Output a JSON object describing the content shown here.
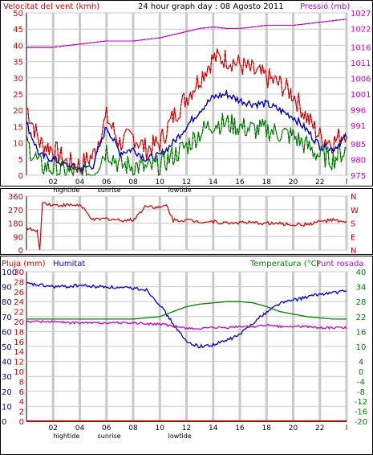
{
  "colors": {
    "frame": "#000000",
    "panel": "#ffffff",
    "grid": "#c9c9c9",
    "wind_speed": "#e00000",
    "wind_avg": "#0000cc",
    "wind_gust": "#008000",
    "pressure": "#cc00cc",
    "direction": "#d00000",
    "humidity": "#0000cc",
    "temperature": "#008000",
    "dewpoint": "#cc00cc",
    "rain": "#cc0000"
  },
  "header": {
    "left_label": "Velocitat del vent (kmh)",
    "center_label": "24 hour graph day : 08 Agosto 2011",
    "right_label": "Pressió (mb)"
  },
  "markers": {
    "hightide": "hightide",
    "sunrise": "sunrise",
    "lowtide": "lowtide"
  },
  "bottom_header": {
    "rain": "Pluja (mm)",
    "humidity": "Humitat",
    "temp": "Temperatura (°C)",
    "dew": "Punt rosada"
  },
  "chart_data": [
    {
      "type": "line",
      "panel": "wind",
      "x_ticks": [
        "02",
        "04",
        "06",
        "08",
        "10",
        "12",
        "14",
        "16",
        "18",
        "20",
        "22",
        "l"
      ],
      "y_left_ticks": [
        0,
        5,
        10,
        15,
        20,
        25,
        30,
        35,
        40,
        45,
        50
      ],
      "ylim_left": [
        0,
        50
      ],
      "y_right_ticks": [
        975,
        980,
        985,
        991,
        996,
        1001,
        1006,
        1011,
        1016,
        1022,
        1027
      ],
      "ylim_right": [
        975,
        1027
      ],
      "x": [
        0,
        1,
        2,
        3,
        4,
        5,
        6,
        7,
        8,
        9,
        10,
        11,
        12,
        13,
        14,
        15,
        16,
        17,
        18,
        19,
        20,
        21,
        22,
        23,
        24
      ],
      "series": [
        {
          "key": "max",
          "color": "wind_speed",
          "axis": "left",
          "values": [
            21,
            10,
            8,
            4,
            3,
            6,
            18,
            10,
            12,
            8,
            10,
            18,
            24,
            30,
            36,
            36,
            34,
            32,
            30,
            28,
            25,
            18,
            12,
            10,
            14
          ]
        },
        {
          "key": "avg",
          "color": "wind_avg",
          "axis": "left",
          "values": [
            16,
            6,
            5,
            3,
            2,
            3,
            15,
            7,
            8,
            5,
            6,
            10,
            15,
            20,
            24,
            25,
            23,
            22,
            22,
            20,
            18,
            14,
            9,
            8,
            12
          ]
        },
        {
          "key": "min",
          "color": "wind_gust",
          "axis": "left",
          "values": [
            10,
            3,
            2,
            1,
            0,
            1,
            8,
            3,
            3,
            2,
            3,
            6,
            9,
            13,
            16,
            16,
            15,
            14,
            14,
            13,
            12,
            9,
            6,
            5,
            8
          ]
        },
        {
          "key": "pressure",
          "color": "pressure",
          "axis": "right",
          "values": [
            1016,
            1016,
            1016,
            1016.5,
            1017,
            1017.5,
            1018,
            1018,
            1018,
            1018.5,
            1019,
            1020,
            1021,
            1022,
            1022.5,
            1022,
            1022,
            1022.5,
            1023,
            1023,
            1023,
            1023.5,
            1024,
            1024.5,
            1025
          ]
        }
      ],
      "ylabel_left": "Velocitat del vent (kmh)",
      "ylabel_right": "Pressió (mb)"
    },
    {
      "type": "line",
      "panel": "direction",
      "x_ticks": [],
      "y_left_ticks": [
        0,
        90,
        180,
        270,
        360
      ],
      "ylim": [
        0,
        360
      ],
      "compass": [
        "N",
        "W",
        "S",
        "E",
        "N"
      ],
      "x": [
        0,
        0.8,
        1,
        1.2,
        2,
        3,
        4,
        5,
        6,
        7,
        8,
        9,
        10,
        10.5,
        11,
        12,
        13,
        14,
        15,
        16,
        17,
        18,
        19,
        20,
        21,
        22,
        23,
        24
      ],
      "series": [
        {
          "key": "direction",
          "color": "direction",
          "values": [
            150,
            120,
            0,
            320,
            300,
            300,
            300,
            200,
            210,
            200,
            200,
            300,
            280,
            300,
            200,
            200,
            190,
            190,
            180,
            185,
            180,
            180,
            175,
            170,
            170,
            190,
            200,
            180
          ]
        }
      ]
    },
    {
      "type": "line",
      "panel": "temp-humidity",
      "x_ticks": [
        "02",
        "04",
        "06",
        "08",
        "10",
        "12",
        "14",
        "16",
        "18",
        "20",
        "22",
        "l"
      ],
      "y_rain_ticks": [
        0,
        2,
        4,
        6,
        8,
        10,
        12,
        14,
        16,
        18,
        20,
        22,
        24,
        26,
        28,
        30
      ],
      "y_humidity_ticks": [
        0,
        10,
        20,
        30,
        40,
        50,
        60,
        70,
        80,
        90,
        100
      ],
      "y_temp_ticks": [
        -20,
        -16,
        -12,
        -8,
        -4,
        0,
        4,
        10,
        16,
        22,
        28,
        34,
        40
      ],
      "ylim_humidity": [
        0,
        100
      ],
      "ylim_temp": [
        -20,
        40
      ],
      "ylim_rain": [
        0,
        30
      ],
      "x": [
        0,
        1,
        2,
        3,
        4,
        5,
        6,
        7,
        8,
        9,
        10,
        11,
        12,
        13,
        14,
        15,
        16,
        17,
        18,
        19,
        20,
        21,
        22,
        23,
        24
      ],
      "series": [
        {
          "key": "humidity",
          "color": "humidity",
          "axis": "humidity",
          "values": [
            92,
            91,
            90,
            90,
            91,
            90,
            90,
            89,
            89,
            88,
            78,
            65,
            53,
            50,
            51,
            54,
            58,
            66,
            73,
            79,
            81,
            83,
            85,
            86,
            87
          ]
        },
        {
          "key": "temperature",
          "color": "temperature",
          "axis": "temp",
          "values": [
            21,
            21,
            21,
            21,
            21,
            21,
            21,
            21,
            21,
            21.5,
            22,
            24,
            26,
            27,
            27.5,
            28,
            28,
            27.5,
            26,
            24,
            23,
            22,
            21.5,
            21,
            21
          ]
        },
        {
          "key": "dewpoint",
          "color": "dewpoint",
          "axis": "temp",
          "values": [
            20,
            20,
            20,
            19.5,
            19.5,
            19.5,
            19.5,
            19.5,
            19.5,
            19,
            19,
            18,
            17.5,
            17,
            17.5,
            17.5,
            18,
            18,
            18.5,
            18,
            18,
            18,
            17.5,
            17.5,
            17.5
          ]
        },
        {
          "key": "rain",
          "color": "rain",
          "axis": "rain",
          "values": [
            0,
            0,
            0,
            0,
            0,
            0,
            0,
            0,
            0,
            0,
            0,
            0,
            0,
            0,
            0,
            0,
            0,
            0,
            0,
            0,
            0,
            0,
            0,
            0,
            0
          ]
        }
      ]
    }
  ]
}
